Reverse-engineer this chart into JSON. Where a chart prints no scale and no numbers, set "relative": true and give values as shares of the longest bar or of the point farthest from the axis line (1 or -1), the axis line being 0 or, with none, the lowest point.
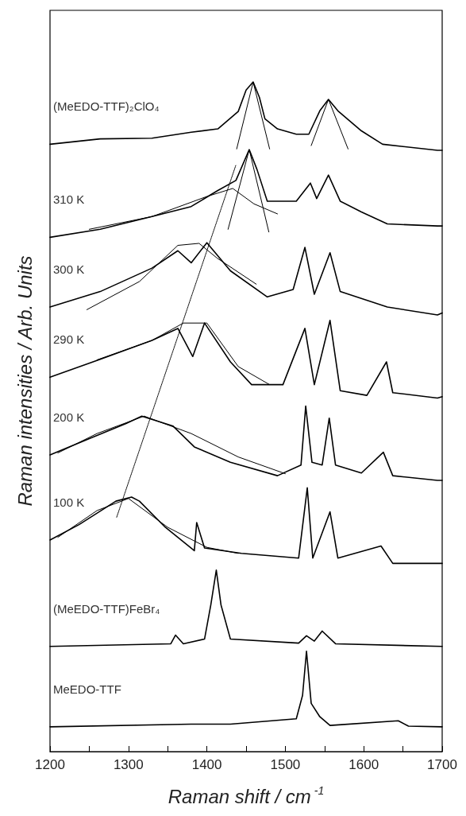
{
  "chart_data": {
    "type": "line",
    "relative": true,
    "xlabel": "Raman shift / cm$^{-1}$",
    "ylabel": "Raman intensities / Arb. Units",
    "xlim": [
      1200,
      1700
    ],
    "xticks": [
      1200,
      {
        "value": 1250,
        "label": null
      },
      1300,
      {
        "value": 1350,
        "label": null
      },
      1400,
      {
        "value": 1450,
        "label": null
      },
      1500,
      {
        "value": 1550,
        "label": null
      },
      1600,
      {
        "value": 1650,
        "label": null
      },
      1700
    ],
    "grid": false,
    "legend": false,
    "marker": "none",
    "line_style": "solid",
    "series": [
      {
        "name": "(MeEDO-TTF)₂ClO₄",
        "color": "#000000",
        "x": [
          1200,
          1264,
          1330,
          1380,
          1414,
          1440,
          1450,
          1459,
          1467,
          1474,
          1490,
          1514,
          1530,
          1544,
          1555,
          1567,
          1597,
          1624,
          1694,
          1700
        ],
        "values": [
          0.907,
          0.915,
          0.916,
          0.925,
          0.93,
          0.956,
          0.988,
          1.0,
          0.977,
          0.945,
          0.93,
          0.922,
          0.922,
          0.957,
          0.974,
          0.957,
          0.927,
          0.907,
          0.898,
          0.898
        ]
      },
      {
        "color": "#000000",
        "x": [
          1438,
          1459,
          1480
        ],
        "values": [
          0.9,
          1.0,
          0.9
        ]
      },
      {
        "color": "#000000",
        "x": [
          1533,
          1555,
          1580
        ],
        "values": [
          0.905,
          0.974,
          0.9
        ]
      },
      {
        "name": "310 K",
        "color": "#000000",
        "x": [
          1200,
          1264,
          1330,
          1380,
          1414,
          1437,
          1454,
          1464,
          1477,
          1514,
          1532,
          1540,
          1555,
          1570,
          1597,
          1630,
          1694,
          1700
        ],
        "values": [
          0.768,
          0.78,
          0.799,
          0.814,
          0.838,
          0.853,
          0.899,
          0.869,
          0.822,
          0.822,
          0.849,
          0.826,
          0.861,
          0.822,
          0.806,
          0.788,
          0.785,
          0.785
        ]
      },
      {
        "color": "#000000",
        "x": [
          1250,
          1330,
          1400,
          1433,
          1460,
          1490
        ],
        "values": [
          0.78,
          0.799,
          0.829,
          0.841,
          0.818,
          0.803
        ]
      },
      {
        "color": "#000000",
        "x": [
          1427,
          1454,
          1479
        ],
        "values": [
          0.78,
          0.899,
          0.776
        ]
      },
      {
        "name": "300 K",
        "color": "#000000",
        "x": [
          1200,
          1264,
          1330,
          1363,
          1380,
          1400,
          1430,
          1477,
          1510,
          1525,
          1537,
          1557,
          1570,
          1630,
          1694,
          1700
        ],
        "values": [
          0.664,
          0.687,
          0.722,
          0.748,
          0.73,
          0.76,
          0.718,
          0.679,
          0.69,
          0.753,
          0.683,
          0.745,
          0.687,
          0.664,
          0.652,
          0.655
        ]
      },
      {
        "color": "#000000",
        "x": [
          1247,
          1314,
          1363,
          1390,
          1413,
          1463
        ],
        "values": [
          0.66,
          0.702,
          0.756,
          0.759,
          0.737,
          0.698
        ]
      },
      {
        "name": "290 K",
        "color": "#000000",
        "x": [
          1200,
          1264,
          1330,
          1363,
          1382,
          1397,
          1430,
          1457,
          1497,
          1525,
          1537,
          1557,
          1570,
          1604,
          1629,
          1637,
          1694,
          1700
        ],
        "values": [
          0.559,
          0.586,
          0.614,
          0.632,
          0.59,
          0.64,
          0.582,
          0.548,
          0.548,
          0.632,
          0.548,
          0.644,
          0.539,
          0.532,
          0.582,
          0.536,
          0.528,
          0.53
        ]
      },
      {
        "color": "#000000",
        "x": [
          1260,
          1330,
          1370,
          1400,
          1440,
          1480
        ],
        "values": [
          0.585,
          0.614,
          0.64,
          0.64,
          0.575,
          0.548
        ]
      },
      {
        "name": "200 K",
        "color": "#000000",
        "x": [
          1200,
          1247,
          1297,
          1317,
          1357,
          1384,
          1430,
          1490,
          1520,
          1526,
          1534,
          1547,
          1556,
          1564,
          1597,
          1625,
          1637,
          1694,
          1700
        ],
        "values": [
          0.443,
          0.466,
          0.49,
          0.501,
          0.486,
          0.455,
          0.432,
          0.412,
          0.428,
          0.516,
          0.432,
          0.428,
          0.498,
          0.428,
          0.416,
          0.447,
          0.412,
          0.405,
          0.405
        ]
      },
      {
        "color": "#000000",
        "x": [
          1210,
          1260,
          1320,
          1380,
          1440,
          1500
        ],
        "values": [
          0.446,
          0.475,
          0.501,
          0.475,
          0.44,
          0.415
        ]
      },
      {
        "name": "100 K",
        "color": "#000000",
        "x": [
          1200,
          1237,
          1284,
          1304,
          1314,
          1347,
          1384,
          1387,
          1397,
          1444,
          1517,
          1528,
          1535,
          1557,
          1567,
          1622,
          1637,
          1694,
          1700
        ],
        "values": [
          0.316,
          0.339,
          0.374,
          0.38,
          0.374,
          0.335,
          0.3,
          0.342,
          0.304,
          0.296,
          0.289,
          0.394,
          0.289,
          0.358,
          0.289,
          0.307,
          0.281,
          0.281,
          0.281
        ]
      },
      {
        "color": "#000000",
        "x": [
          1210,
          1260,
          1300,
          1350,
          1400,
          1440
        ],
        "values": [
          0.32,
          0.36,
          0.378,
          0.335,
          0.305,
          0.296
        ]
      },
      {
        "color": "#000000",
        "line_style": "dotted",
        "x": [
          1285,
          1437
        ],
        "values": [
          0.35,
          0.876
        ]
      },
      {
        "name": "(MeEDO-TTF)FeBr₄",
        "color": "#000000",
        "x": [
          1200,
          1354,
          1360,
          1370,
          1397,
          1405,
          1412,
          1418,
          1430,
          1517,
          1527,
          1537,
          1547,
          1564,
          1700
        ],
        "values": [
          0.157,
          0.161,
          0.174,
          0.161,
          0.168,
          0.219,
          0.271,
          0.219,
          0.168,
          0.162,
          0.173,
          0.165,
          0.18,
          0.161,
          0.157
        ]
      },
      {
        "name": "MeEDO-TTF",
        "color": "#000000",
        "x": [
          1200,
          1380,
          1430,
          1514,
          1522,
          1527,
          1533,
          1544,
          1557,
          1644,
          1657,
          1700
        ],
        "values": [
          0.037,
          0.041,
          0.041,
          0.049,
          0.084,
          0.15,
          0.072,
          0.052,
          0.039,
          0.046,
          0.038,
          0.037
        ]
      }
    ]
  }
}
